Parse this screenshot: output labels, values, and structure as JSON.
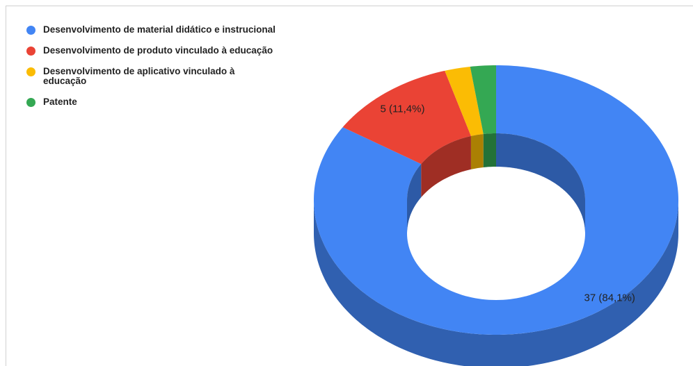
{
  "chart_data": {
    "type": "pie",
    "donut": true,
    "three_d": true,
    "legend_position": "top-left",
    "title": "",
    "categories": [
      "Desenvolvimento de material didático e instrucional",
      "Desenvolvimento de produto vinculado à educação",
      "Desenvolvimento de aplicativo vinculado à educação",
      "Patente"
    ],
    "values": [
      37,
      5,
      1,
      1
    ],
    "colors": [
      "#4285f4",
      "#ea4335",
      "#fbbc04",
      "#34a853"
    ],
    "data_labels": [
      "37 (84,1%)",
      "5 (11,4%)",
      "",
      ""
    ]
  }
}
